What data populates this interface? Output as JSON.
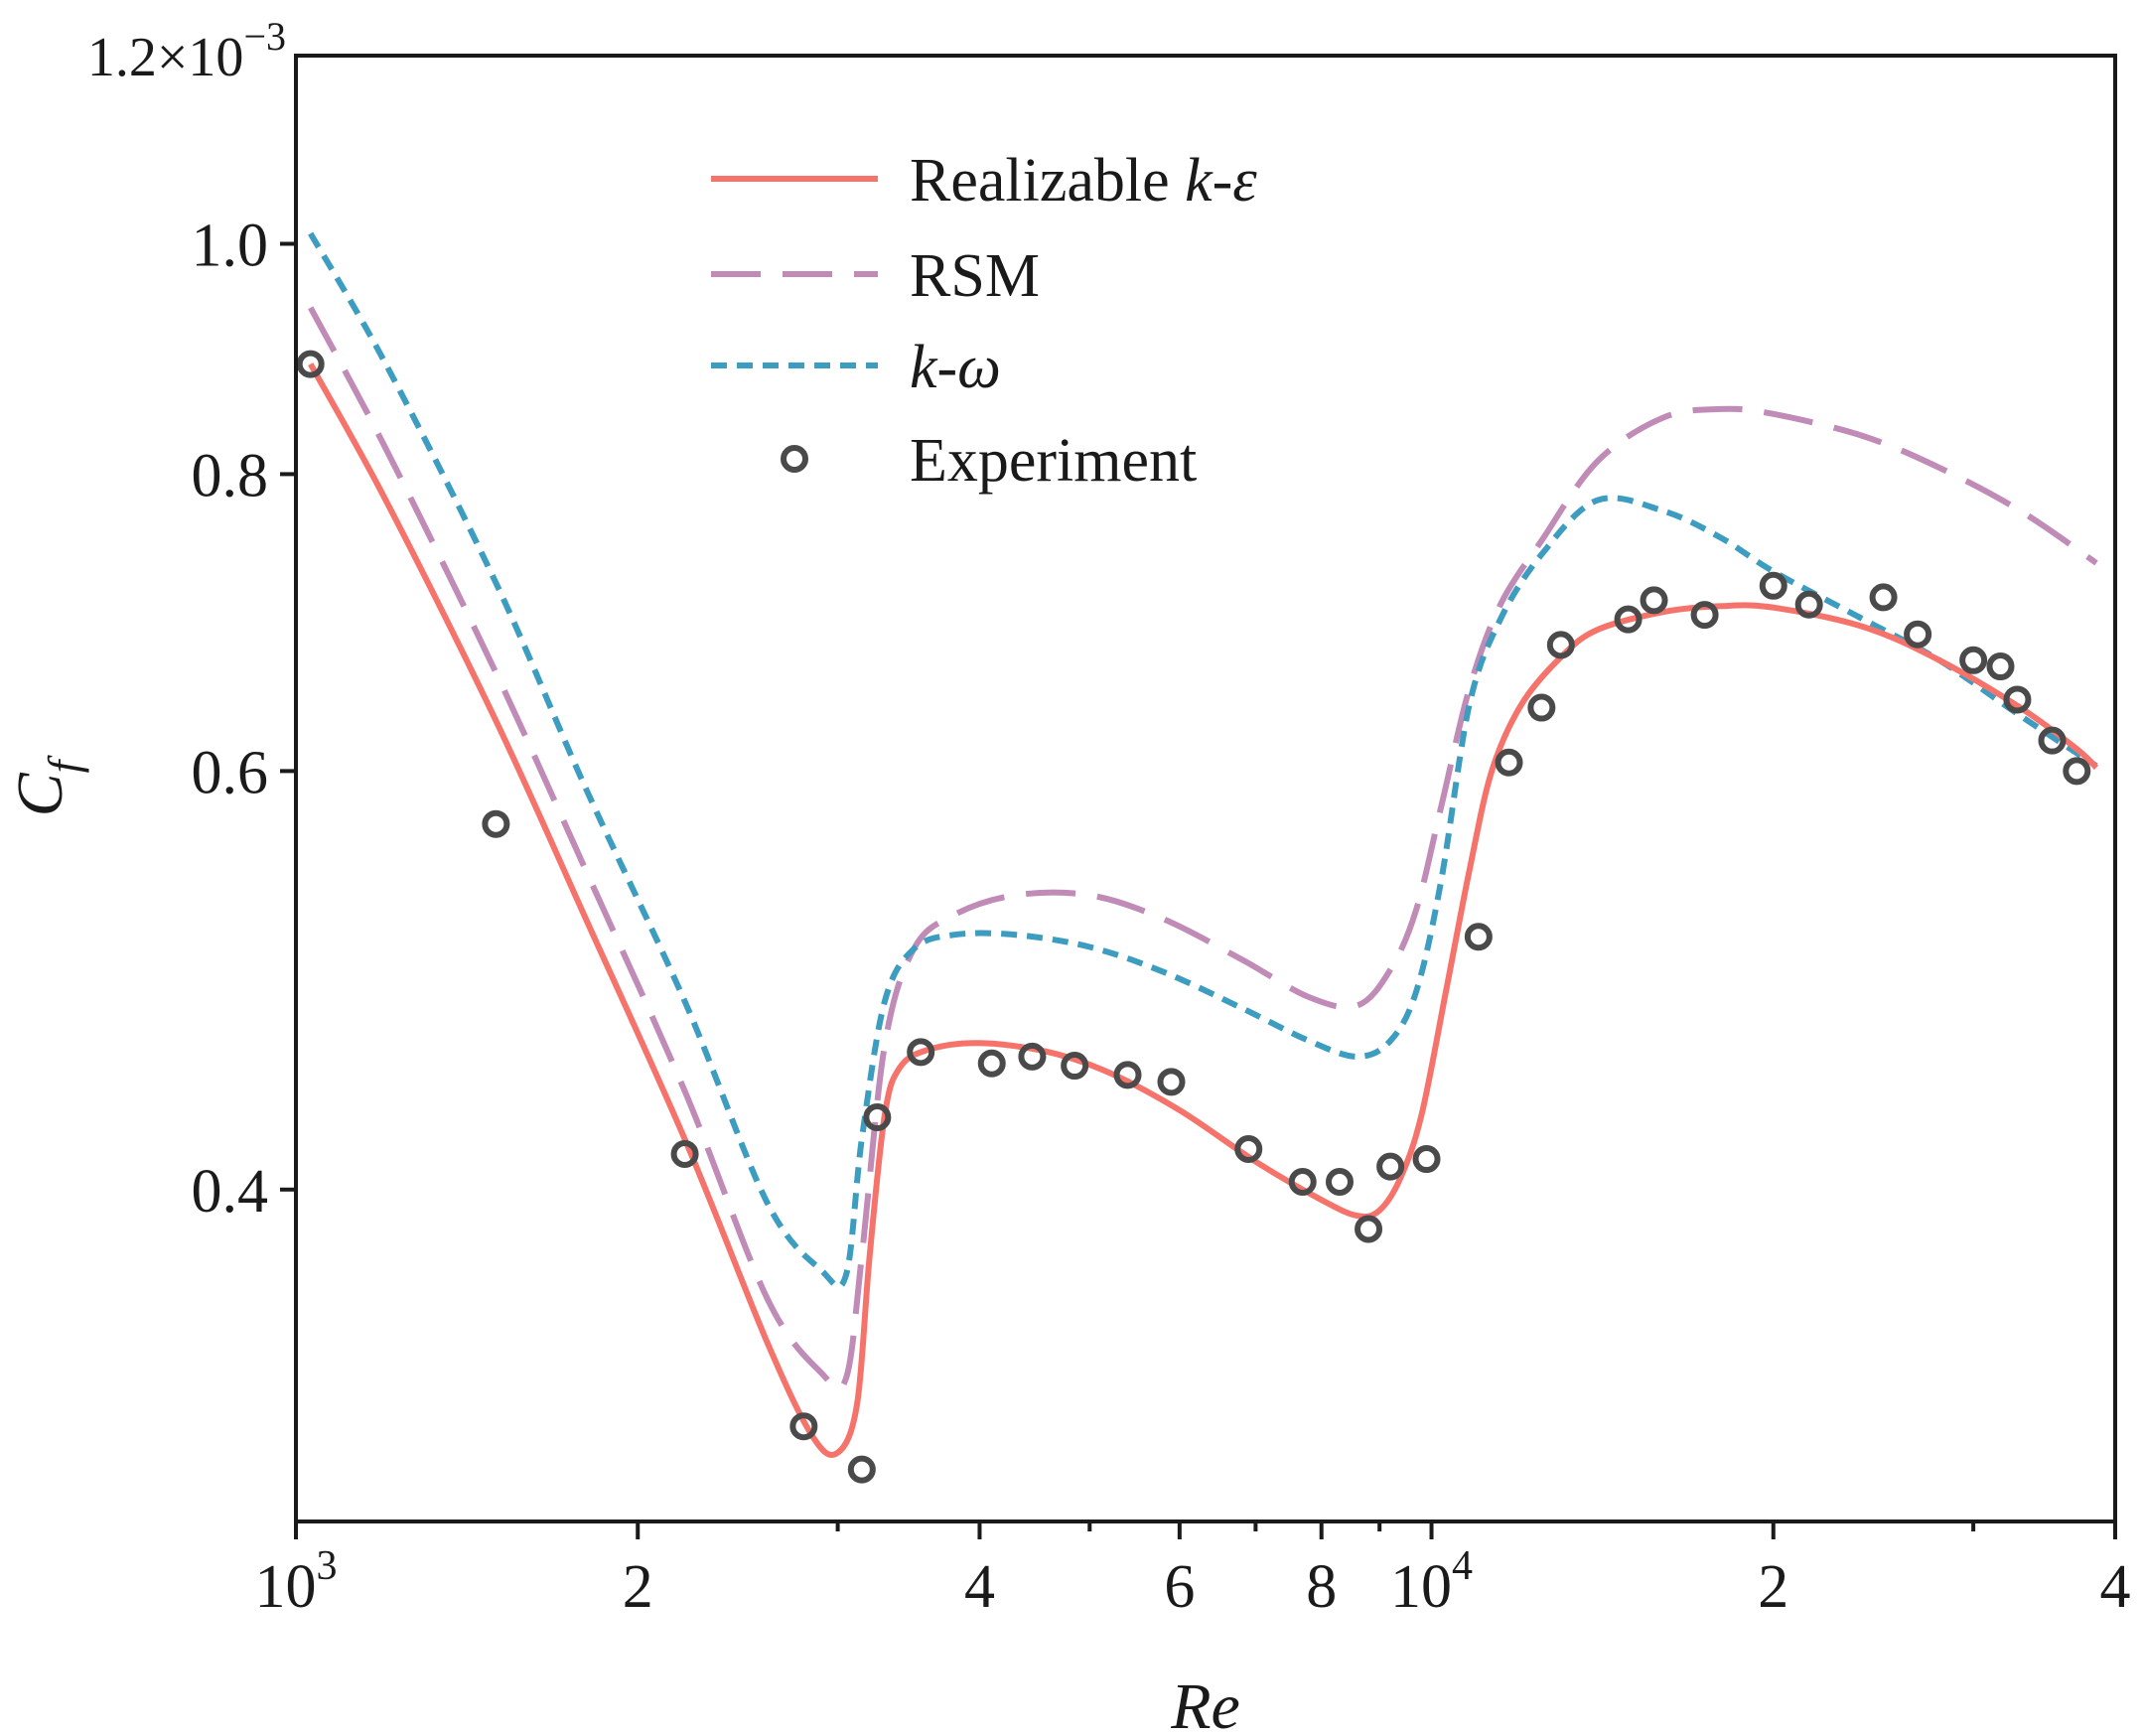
{
  "chart_data": {
    "type": "line",
    "title": "",
    "xlabel": "Re",
    "ylabel": "C",
    "ylabel_sub": "f",
    "xscale": "log",
    "yscale": "log",
    "xlim": [
      1000,
      40000
    ],
    "ylim": [
      0.00029,
      0.0012
    ],
    "x_ticks": [
      {
        "value": 1000,
        "base": "10",
        "exp": "3"
      },
      {
        "value": 2000,
        "base": "2",
        "exp": ""
      },
      {
        "value": 4000,
        "base": "4",
        "exp": ""
      },
      {
        "value": 6000,
        "base": "6",
        "exp": ""
      },
      {
        "value": 8000,
        "base": "8",
        "exp": ""
      },
      {
        "value": 10000,
        "base": "10",
        "exp": "4"
      },
      {
        "value": 20000,
        "base": "2",
        "exp": ""
      },
      {
        "value": 40000,
        "base": "4",
        "exp": ""
      }
    ],
    "x_minor_ticks": [
      3000,
      5000,
      7000,
      9000,
      30000
    ],
    "y_ticks": [
      {
        "value": 0.0004,
        "label": "0.4"
      },
      {
        "value": 0.0006,
        "label": "0.6"
      },
      {
        "value": 0.0008,
        "label": "0.8"
      },
      {
        "value": 0.001,
        "label": "1.0"
      }
    ],
    "y_top_label": {
      "value": 0.0012,
      "mantissa": "1.2×10",
      "exp": "−3"
    },
    "legend_position": "top-center",
    "series": [
      {
        "name": "Realizable ",
        "name_italic": "k-ε",
        "style": "solid",
        "color": "#f5736b",
        "x": [
          1030,
          1200,
          1500,
          1800,
          2200,
          2600,
          2850,
          3000,
          3120,
          3200,
          3300,
          3400,
          3600,
          4000,
          4600,
          5200,
          6000,
          7000,
          8000,
          8600,
          9000,
          9400,
          9800,
          10300,
          10800,
          11300,
          12000,
          13000,
          14000,
          16000,
          18000,
          20000,
          24000,
          28000,
          33000,
          37000,
          38500
        ],
        "y": [
          0.00089,
          0.00078,
          0.00063,
          0.00052,
          0.00042,
          0.000345,
          0.000315,
          0.00031,
          0.000325,
          0.000375,
          0.00043,
          0.00045,
          0.000458,
          0.000461,
          0.000457,
          0.000448,
          0.000432,
          0.000411,
          0.000396,
          0.00039,
          0.000392,
          0.000405,
          0.00043,
          0.000485,
          0.000545,
          0.0006,
          0.00064,
          0.00067,
          0.000688,
          0.0007,
          0.000704,
          0.000703,
          0.00069,
          0.000668,
          0.000638,
          0.000613,
          0.000602
        ]
      },
      {
        "name": "RSM",
        "name_italic": "",
        "style": "dashed",
        "color": "#c08bb7",
        "x": [
          1030,
          1200,
          1500,
          1800,
          2200,
          2600,
          2900,
          3050,
          3150,
          3300,
          3500,
          3800,
          4300,
          5000,
          5800,
          6800,
          7800,
          8600,
          9200,
          9700,
          10200,
          10800,
          11500,
          12500,
          14000,
          16000,
          18000,
          20000,
          24000,
          28000,
          33000,
          38500
        ],
        "y": [
          0.00094,
          0.00082,
          0.00066,
          0.000545,
          0.00044,
          0.00036,
          0.000335,
          0.000333,
          0.000375,
          0.00046,
          0.000505,
          0.000522,
          0.000532,
          0.000532,
          0.00052,
          0.0005,
          0.000482,
          0.000478,
          0.000495,
          0.000525,
          0.00058,
          0.00065,
          0.000705,
          0.00075,
          0.00081,
          0.000845,
          0.000852,
          0.000848,
          0.00083,
          0.000805,
          0.000772,
          0.000734
        ]
      },
      {
        "name": "",
        "name_italic": "k-ω",
        "style": "dotted",
        "color": "#3d9dc0",
        "x": [
          1030,
          1200,
          1500,
          1800,
          2200,
          2600,
          2900,
          3050,
          3150,
          3300,
          3500,
          3800,
          4300,
          5000,
          5800,
          6800,
          7800,
          8600,
          9200,
          9700,
          10200,
          10800,
          11500,
          12500,
          14000,
          16000,
          18000,
          20000,
          24000,
          28000,
          33000,
          38500
        ],
        "y": [
          0.00101,
          0.00089,
          0.00072,
          0.00059,
          0.00048,
          0.000395,
          0.00037,
          0.000368,
          0.00042,
          0.00048,
          0.000505,
          0.000512,
          0.000512,
          0.000506,
          0.000494,
          0.000477,
          0.000462,
          0.000455,
          0.000462,
          0.000485,
          0.00054,
          0.00064,
          0.000695,
          0.00074,
          0.00078,
          0.000772,
          0.000752,
          0.000728,
          0.000695,
          0.000668,
          0.000633,
          0.000603
        ]
      },
      {
        "name": "Experiment",
        "name_italic": "",
        "style": "markers",
        "color": "#4a4a4a",
        "x": [
          1030,
          1500,
          2200,
          2800,
          3150,
          3250,
          3550,
          4100,
          4450,
          4850,
          5400,
          5900,
          6900,
          7700,
          8300,
          8800,
          9200,
          9900,
          11000,
          11700,
          12500,
          13000,
          14900,
          15700,
          17400,
          20000,
          21500,
          25000,
          26800,
          30000,
          31700,
          32800,
          35200,
          37000
        ],
        "y": [
          0.00089,
          0.00057,
          0.000414,
          0.000318,
          0.000305,
          0.000429,
          0.000457,
          0.000452,
          0.000455,
          0.000451,
          0.000447,
          0.000444,
          0.000416,
          0.000403,
          0.000403,
          0.000385,
          0.000409,
          0.000412,
          0.000511,
          0.000605,
          0.000638,
          0.000678,
          0.000695,
          0.000708,
          0.000698,
          0.000718,
          0.000705,
          0.00071,
          0.000685,
          0.000668,
          0.000664,
          0.000643,
          0.000618,
          0.0006
        ]
      }
    ]
  }
}
